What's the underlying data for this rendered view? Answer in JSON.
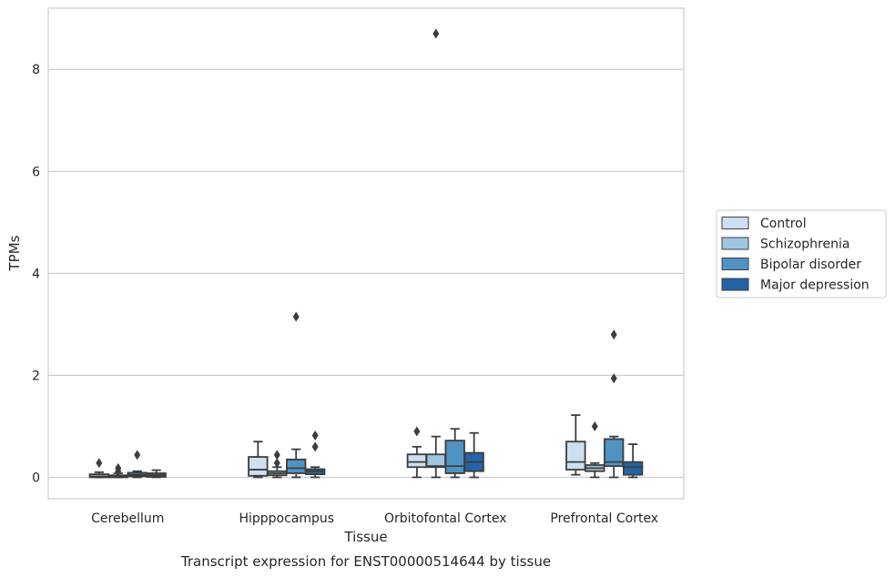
{
  "colors": {
    "control": "#cddff0",
    "schizophrenia": "#9fc6e0",
    "bipolar": "#4f93c3",
    "depression": "#2463a6",
    "line": "#3d3d3d",
    "grid": "#cccccc",
    "frame": "#cccccc"
  },
  "chart_data": {
    "type": "box",
    "title": "",
    "caption": "Transcript expression for ENST00000514644 by tissue",
    "xlabel": "Tissue",
    "ylabel": "TPMs",
    "ylim": [
      -0.42,
      9.2
    ],
    "yticks": [
      0,
      2,
      4,
      6,
      8
    ],
    "grid": "horizontal",
    "legend_position": "right",
    "categories": [
      "Cerebellum",
      "Hipppocampus",
      "Orbitofontal Cortex",
      "Prefrontal Cortex"
    ],
    "series": [
      {
        "name": "Control",
        "boxes": [
          {
            "wlo": 0.0,
            "q1": 0.0,
            "med": 0.02,
            "q3": 0.06,
            "whi": 0.1,
            "outliers": [
              0.28
            ]
          },
          {
            "wlo": 0.0,
            "q1": 0.03,
            "med": 0.15,
            "q3": 0.4,
            "whi": 0.7,
            "outliers": []
          },
          {
            "wlo": 0.0,
            "q1": 0.2,
            "med": 0.3,
            "q3": 0.45,
            "whi": 0.6,
            "outliers": [
              0.9
            ]
          },
          {
            "wlo": 0.05,
            "q1": 0.15,
            "med": 0.3,
            "q3": 0.7,
            "whi": 1.22,
            "outliers": []
          }
        ]
      },
      {
        "name": "Schizophrenia",
        "boxes": [
          {
            "wlo": 0.0,
            "q1": 0.0,
            "med": 0.01,
            "q3": 0.04,
            "whi": 0.08,
            "outliers": [
              0.18,
              0.12
            ]
          },
          {
            "wlo": 0.0,
            "q1": 0.04,
            "med": 0.08,
            "q3": 0.12,
            "whi": 0.2,
            "outliers": [
              0.28,
              0.44
            ]
          },
          {
            "wlo": 0.0,
            "q1": 0.2,
            "med": 0.22,
            "q3": 0.45,
            "whi": 0.8,
            "outliers": [
              8.7
            ]
          },
          {
            "wlo": 0.0,
            "q1": 0.12,
            "med": 0.18,
            "q3": 0.24,
            "whi": 0.28,
            "outliers": [
              1.0
            ]
          }
        ]
      },
      {
        "name": "Bipolar disorder",
        "boxes": [
          {
            "wlo": 0.0,
            "q1": 0.02,
            "med": 0.05,
            "q3": 0.09,
            "whi": 0.12,
            "outliers": [
              0.44
            ]
          },
          {
            "wlo": 0.0,
            "q1": 0.08,
            "med": 0.18,
            "q3": 0.35,
            "whi": 0.55,
            "outliers": [
              3.15
            ]
          },
          {
            "wlo": 0.0,
            "q1": 0.08,
            "med": 0.22,
            "q3": 0.72,
            "whi": 0.95,
            "outliers": []
          },
          {
            "wlo": 0.0,
            "q1": 0.22,
            "med": 0.3,
            "q3": 0.75,
            "whi": 0.8,
            "outliers": [
              1.94,
              2.8
            ]
          }
        ]
      },
      {
        "name": "Major depression",
        "boxes": [
          {
            "wlo": 0.0,
            "q1": 0.01,
            "med": 0.04,
            "q3": 0.08,
            "whi": 0.14,
            "outliers": []
          },
          {
            "wlo": 0.0,
            "q1": 0.06,
            "med": 0.12,
            "q3": 0.16,
            "whi": 0.2,
            "outliers": [
              0.6,
              0.82
            ]
          },
          {
            "wlo": 0.0,
            "q1": 0.12,
            "med": 0.3,
            "q3": 0.48,
            "whi": 0.87,
            "outliers": []
          },
          {
            "wlo": 0.0,
            "q1": 0.05,
            "med": 0.2,
            "q3": 0.3,
            "whi": 0.65,
            "outliers": []
          }
        ]
      }
    ]
  }
}
